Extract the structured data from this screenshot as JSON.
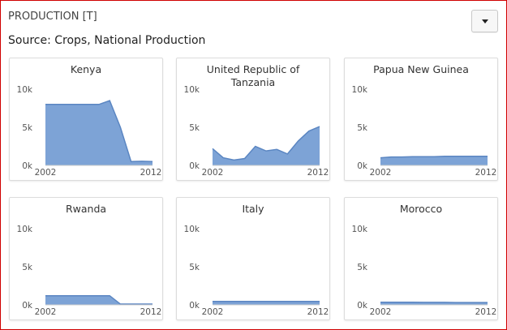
{
  "header": {
    "title": "PRODUCTION [T]",
    "subtitle": "Source: Crops, National Production"
  },
  "menu": {
    "icon": "caret-down-icon"
  },
  "colors": {
    "area_fill": "#7da3d6",
    "area_line": "#5b86c2",
    "border": "#d00000"
  },
  "chart_data": [
    {
      "type": "area",
      "title": "Kenya",
      "x": [
        2002,
        2003,
        2004,
        2005,
        2006,
        2007,
        2008,
        2009,
        2010,
        2011,
        2012
      ],
      "y": [
        8000,
        8000,
        8000,
        8000,
        8000,
        8000,
        8500,
        5000,
        500,
        550,
        500
      ],
      "ylim": [
        0,
        10000
      ],
      "yticks": [
        "10k",
        "5k",
        "0k"
      ],
      "xticks": [
        "2002",
        "2012"
      ]
    },
    {
      "type": "area",
      "title": "United Republic of Tanzania",
      "x": [
        2002,
        2003,
        2004,
        2005,
        2006,
        2007,
        2008,
        2009,
        2010,
        2011,
        2012
      ],
      "y": [
        2200,
        1000,
        700,
        900,
        2500,
        1900,
        2100,
        1500,
        3200,
        4500,
        5100
      ],
      "ylim": [
        0,
        10000
      ],
      "yticks": [
        "10k",
        "5k",
        "0k"
      ],
      "xticks": [
        "2002",
        "2012"
      ]
    },
    {
      "type": "area",
      "title": "Papua New Guinea",
      "x": [
        2002,
        2003,
        2004,
        2005,
        2006,
        2007,
        2008,
        2009,
        2010,
        2011,
        2012
      ],
      "y": [
        1000,
        1100,
        1100,
        1150,
        1150,
        1150,
        1200,
        1200,
        1200,
        1200,
        1200
      ],
      "ylim": [
        0,
        10000
      ],
      "yticks": [
        "10k",
        "5k",
        "0k"
      ],
      "xticks": [
        "2002",
        "2012"
      ]
    },
    {
      "type": "area",
      "title": "Rwanda",
      "x": [
        2002,
        2003,
        2004,
        2005,
        2006,
        2007,
        2008,
        2009,
        2010,
        2011,
        2012
      ],
      "y": [
        1200,
        1200,
        1200,
        1200,
        1200,
        1200,
        1200,
        100,
        100,
        100,
        100
      ],
      "ylim": [
        0,
        10000
      ],
      "yticks": [
        "10k",
        "5k",
        "0k"
      ],
      "xticks": [
        "2002",
        "2012"
      ]
    },
    {
      "type": "area",
      "title": "Italy",
      "x": [
        2002,
        2003,
        2004,
        2005,
        2006,
        2007,
        2008,
        2009,
        2010,
        2011,
        2012
      ],
      "y": [
        450,
        450,
        450,
        450,
        450,
        450,
        450,
        450,
        450,
        450,
        450
      ],
      "ylim": [
        0,
        10000
      ],
      "yticks": [
        "10k",
        "5k",
        "0k"
      ],
      "xticks": [
        "2002",
        "2012"
      ]
    },
    {
      "type": "area",
      "title": "Morocco",
      "x": [
        2002,
        2003,
        2004,
        2005,
        2006,
        2007,
        2008,
        2009,
        2010,
        2011,
        2012
      ],
      "y": [
        350,
        350,
        350,
        350,
        330,
        330,
        330,
        300,
        300,
        300,
        300
      ],
      "ylim": [
        0,
        10000
      ],
      "yticks": [
        "10k",
        "5k",
        "0k"
      ],
      "xticks": [
        "2002",
        "2012"
      ]
    }
  ]
}
